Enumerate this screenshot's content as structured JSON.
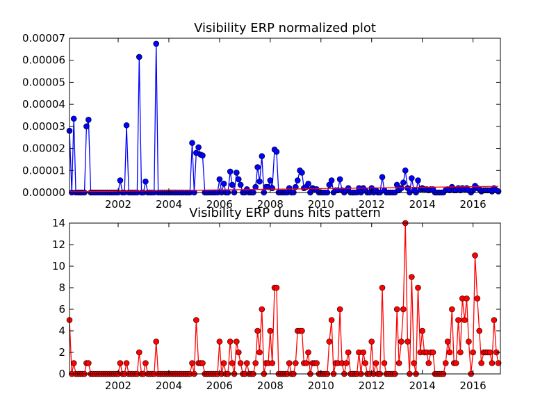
{
  "chart_data": [
    {
      "type": "line",
      "title": "Visibility ERP normalized plot",
      "x": [
        2000.08,
        2000.17,
        2000.25,
        2000.33,
        2000.42,
        2000.5,
        2000.58,
        2000.67,
        2000.75,
        2000.83,
        2000.92,
        2001.0,
        2001.08,
        2001.17,
        2001.25,
        2001.33,
        2001.42,
        2001.5,
        2001.58,
        2001.67,
        2001.75,
        2001.83,
        2001.92,
        2002.0,
        2002.08,
        2002.17,
        2002.25,
        2002.33,
        2002.42,
        2002.5,
        2002.58,
        2002.67,
        2002.75,
        2002.83,
        2002.92,
        2003.0,
        2003.08,
        2003.17,
        2003.25,
        2003.33,
        2003.42,
        2003.5,
        2003.58,
        2003.67,
        2003.75,
        2003.83,
        2003.92,
        2004.0,
        2004.08,
        2004.17,
        2004.25,
        2004.33,
        2004.42,
        2004.5,
        2004.58,
        2004.67,
        2004.75,
        2004.83,
        2004.92,
        2005.0,
        2005.08,
        2005.17,
        2005.25,
        2005.33,
        2005.42,
        2005.5,
        2005.58,
        2005.67,
        2005.75,
        2005.83,
        2005.92,
        2006.0,
        2006.08,
        2006.17,
        2006.25,
        2006.33,
        2006.42,
        2006.5,
        2006.58,
        2006.67,
        2006.75,
        2006.83,
        2006.92,
        2007.0,
        2007.08,
        2007.17,
        2007.25,
        2007.33,
        2007.42,
        2007.5,
        2007.58,
        2007.67,
        2007.75,
        2007.83,
        2007.92,
        2008.0,
        2008.08,
        2008.17,
        2008.25,
        2008.33,
        2008.42,
        2008.5,
        2008.58,
        2008.67,
        2008.75,
        2008.83,
        2008.92,
        2009.0,
        2009.08,
        2009.17,
        2009.25,
        2009.33,
        2009.42,
        2009.5,
        2009.58,
        2009.67,
        2009.75,
        2009.83,
        2009.92,
        2010.0,
        2010.08,
        2010.17,
        2010.25,
        2010.33,
        2010.42,
        2010.5,
        2010.58,
        2010.67,
        2010.75,
        2010.83,
        2010.92,
        2011.0,
        2011.08,
        2011.17,
        2011.25,
        2011.33,
        2011.42,
        2011.5,
        2011.58,
        2011.67,
        2011.75,
        2011.83,
        2011.92,
        2012.0,
        2012.08,
        2012.17,
        2012.25,
        2012.33,
        2012.42,
        2012.5,
        2012.58,
        2012.67,
        2012.75,
        2012.83,
        2012.92,
        2013.0,
        2013.08,
        2013.17,
        2013.25,
        2013.33,
        2013.42,
        2013.5,
        2013.58,
        2013.67,
        2013.75,
        2013.83,
        2013.92,
        2014.0,
        2014.08,
        2014.17,
        2014.25,
        2014.33,
        2014.42,
        2014.5,
        2014.58,
        2014.67,
        2014.75,
        2014.83,
        2014.92,
        2015.0,
        2015.08,
        2015.17,
        2015.25,
        2015.33,
        2015.42,
        2015.5,
        2015.58,
        2015.67,
        2015.75,
        2015.83,
        2015.92,
        2016.0,
        2016.08,
        2016.17,
        2016.25,
        2016.33,
        2016.42,
        2016.5,
        2016.58,
        2016.67,
        2016.75,
        2016.83,
        2016.92,
        2017.0
      ],
      "series": [
        {
          "color": "#0000ff",
          "marker": "o",
          "values": [
            2.8e-05,
            0,
            3.35e-05,
            0,
            0,
            0,
            0,
            0,
            3e-05,
            3.3e-05,
            0,
            0,
            0,
            0,
            0,
            0,
            0,
            0,
            0,
            0,
            0,
            0,
            0,
            0,
            5.5e-06,
            0,
            0,
            3.05e-05,
            0,
            0,
            0,
            0,
            0,
            6.15e-05,
            0,
            0,
            5e-06,
            0,
            0,
            0,
            0,
            6.75e-05,
            0,
            0,
            0,
            0,
            0,
            0,
            0,
            0,
            0,
            0,
            0,
            0,
            0,
            0,
            0,
            0,
            2.25e-05,
            0,
            1.8e-05,
            2.05e-05,
            1.72e-05,
            1.68e-05,
            0,
            0,
            0,
            0,
            0,
            0,
            0,
            6e-06,
            0,
            4e-06,
            0,
            0,
            9.5e-06,
            3.5e-06,
            0,
            9e-06,
            6e-06,
            3.5e-06,
            0,
            0,
            1.5e-06,
            0,
            0,
            0,
            2.5e-06,
            1.15e-05,
            5e-06,
            1.65e-05,
            0,
            2.5e-06,
            2.5e-06,
            5.5e-06,
            2e-06,
            1.95e-05,
            1.85e-05,
            0,
            0,
            0,
            0,
            0,
            2e-06,
            0,
            0,
            2.5e-06,
            5.5e-06,
            1e-05,
            9e-06,
            2e-06,
            2.5e-06,
            4e-06,
            0,
            2e-06,
            1.5e-06,
            1.5e-06,
            0,
            0,
            0,
            0,
            0,
            3.5e-06,
            5.5e-06,
            0,
            1e-06,
            1e-06,
            6e-06,
            1e-06,
            0,
            1e-06,
            2e-06,
            0,
            0,
            0,
            0,
            2e-06,
            0,
            2e-06,
            1e-06,
            0,
            0,
            2e-06,
            0,
            1e-06,
            0,
            0,
            7e-06,
            1e-06,
            0,
            0,
            0,
            0,
            0,
            3.5e-06,
            1e-06,
            2e-06,
            4.5e-06,
            1e-05,
            2e-06,
            0,
            6.5e-06,
            1e-06,
            0,
            5.5e-06,
            1.5e-06,
            2e-06,
            1.5e-06,
            1.5e-06,
            1e-06,
            1.5e-06,
            1.5e-06,
            0,
            0,
            0,
            0,
            0,
            1e-06,
            1.5e-06,
            1e-06,
            2.5e-06,
            1e-06,
            1e-06,
            2e-06,
            1e-06,
            2e-06,
            1.5e-06,
            2e-06,
            1e-06,
            0,
            1e-06,
            3e-06,
            2e-06,
            1.5e-06,
            5e-07,
            1e-06,
            1e-06,
            1e-06,
            1e-06,
            5e-07,
            2e-06,
            1e-06,
            5e-07
          ]
        },
        {
          "color": "#ff0000",
          "marker": "none",
          "x": [
            2000.08,
            2017.0
          ],
          "values": [
            3e-07,
            2.8e-06
          ]
        }
      ],
      "xlim": [
        2000.08,
        2017.08
      ],
      "xticks": [
        2002,
        2004,
        2006,
        2008,
        2010,
        2012,
        2014,
        2016
      ],
      "ylim": [
        0,
        7e-05
      ],
      "yticks": [
        {
          "value": 0,
          "label": "0.00000"
        },
        1e-05,
        2e-05,
        3e-05,
        4e-05,
        5e-05,
        6e-05,
        7e-05
      ]
    },
    {
      "type": "line",
      "title": "Visibility ERP duns hits pattern",
      "x": [
        2000.08,
        2000.17,
        2000.25,
        2000.33,
        2000.42,
        2000.5,
        2000.58,
        2000.67,
        2000.75,
        2000.83,
        2000.92,
        2001.0,
        2001.08,
        2001.17,
        2001.25,
        2001.33,
        2001.42,
        2001.5,
        2001.58,
        2001.67,
        2001.75,
        2001.83,
        2001.92,
        2002.0,
        2002.08,
        2002.17,
        2002.25,
        2002.33,
        2002.42,
        2002.5,
        2002.58,
        2002.67,
        2002.75,
        2002.83,
        2002.92,
        2003.0,
        2003.08,
        2003.17,
        2003.25,
        2003.33,
        2003.42,
        2003.5,
        2003.58,
        2003.67,
        2003.75,
        2003.83,
        2003.92,
        2004.0,
        2004.08,
        2004.17,
        2004.25,
        2004.33,
        2004.42,
        2004.5,
        2004.58,
        2004.67,
        2004.75,
        2004.83,
        2004.92,
        2005.0,
        2005.08,
        2005.17,
        2005.25,
        2005.33,
        2005.42,
        2005.5,
        2005.58,
        2005.67,
        2005.75,
        2005.83,
        2005.92,
        2006.0,
        2006.08,
        2006.17,
        2006.25,
        2006.33,
        2006.42,
        2006.5,
        2006.58,
        2006.67,
        2006.75,
        2006.83,
        2006.92,
        2007.0,
        2007.08,
        2007.17,
        2007.25,
        2007.33,
        2007.42,
        2007.5,
        2007.58,
        2007.67,
        2007.75,
        2007.83,
        2007.92,
        2008.0,
        2008.08,
        2008.17,
        2008.25,
        2008.33,
        2008.42,
        2008.5,
        2008.58,
        2008.67,
        2008.75,
        2008.83,
        2008.92,
        2009.0,
        2009.08,
        2009.17,
        2009.25,
        2009.33,
        2009.42,
        2009.5,
        2009.58,
        2009.67,
        2009.75,
        2009.83,
        2009.92,
        2010.0,
        2010.08,
        2010.17,
        2010.25,
        2010.33,
        2010.42,
        2010.5,
        2010.58,
        2010.67,
        2010.75,
        2010.83,
        2010.92,
        2011.0,
        2011.08,
        2011.17,
        2011.25,
        2011.33,
        2011.42,
        2011.5,
        2011.58,
        2011.67,
        2011.75,
        2011.83,
        2011.92,
        2012.0,
        2012.08,
        2012.17,
        2012.25,
        2012.33,
        2012.42,
        2012.5,
        2012.58,
        2012.67,
        2012.75,
        2012.83,
        2012.92,
        2013.0,
        2013.08,
        2013.17,
        2013.25,
        2013.33,
        2013.42,
        2013.5,
        2013.58,
        2013.67,
        2013.75,
        2013.83,
        2013.92,
        2014.0,
        2014.08,
        2014.17,
        2014.25,
        2014.33,
        2014.42,
        2014.5,
        2014.58,
        2014.67,
        2014.75,
        2014.83,
        2014.92,
        2015.0,
        2015.08,
        2015.17,
        2015.25,
        2015.33,
        2015.42,
        2015.5,
        2015.58,
        2015.67,
        2015.75,
        2015.83,
        2015.92,
        2016.0,
        2016.08,
        2016.17,
        2016.25,
        2016.33,
        2016.42,
        2016.5,
        2016.58,
        2016.67,
        2016.75,
        2016.83,
        2016.92,
        2017.0
      ],
      "series": [
        {
          "color": "#ff0000",
          "marker": "o",
          "values": [
            5,
            0,
            1,
            0,
            0,
            0,
            0,
            0,
            1,
            1,
            0,
            0,
            0,
            0,
            0,
            0,
            0,
            0,
            0,
            0,
            0,
            0,
            0,
            0,
            1,
            0,
            0,
            1,
            0,
            0,
            0,
            0,
            0,
            2,
            0,
            0,
            1,
            0,
            0,
            0,
            0,
            3,
            0,
            0,
            0,
            0,
            0,
            0,
            0,
            0,
            0,
            0,
            0,
            0,
            0,
            0,
            0,
            0,
            1,
            0,
            5,
            1,
            1,
            1,
            0,
            0,
            0,
            0,
            0,
            0,
            0,
            3,
            0,
            1,
            0,
            0,
            3,
            1,
            0,
            3,
            2,
            1,
            0,
            0,
            1,
            0,
            0,
            0,
            1,
            4,
            2,
            6,
            0,
            1,
            1,
            4,
            1,
            8,
            8,
            0,
            0,
            0,
            0,
            0,
            1,
            0,
            0,
            1,
            4,
            4,
            4,
            1,
            1,
            2,
            0,
            1,
            1,
            1,
            0,
            0,
            0,
            0,
            0,
            3,
            5,
            0,
            1,
            1,
            6,
            1,
            0,
            1,
            2,
            0,
            0,
            0,
            0,
            2,
            0,
            2,
            1,
            0,
            0,
            3,
            0,
            1,
            0,
            0,
            8,
            1,
            0,
            0,
            0,
            0,
            0,
            6,
            1,
            3,
            6,
            14,
            3,
            0,
            9,
            1,
            0,
            8,
            2,
            4,
            2,
            2,
            1,
            2,
            2,
            0,
            0,
            0,
            0,
            0,
            1,
            3,
            2,
            6,
            1,
            1,
            5,
            2,
            7,
            5,
            7,
            3,
            0,
            2,
            11,
            7,
            4,
            1,
            2,
            2,
            2,
            2,
            1,
            5,
            2,
            1
          ]
        }
      ],
      "xlim": [
        2000.08,
        2017.08
      ],
      "xticks": [
        2002,
        2004,
        2006,
        2008,
        2010,
        2012,
        2014,
        2016
      ],
      "ylim": [
        0,
        14
      ],
      "yticks": [
        0,
        2,
        4,
        6,
        8,
        10,
        12,
        14
      ]
    }
  ]
}
